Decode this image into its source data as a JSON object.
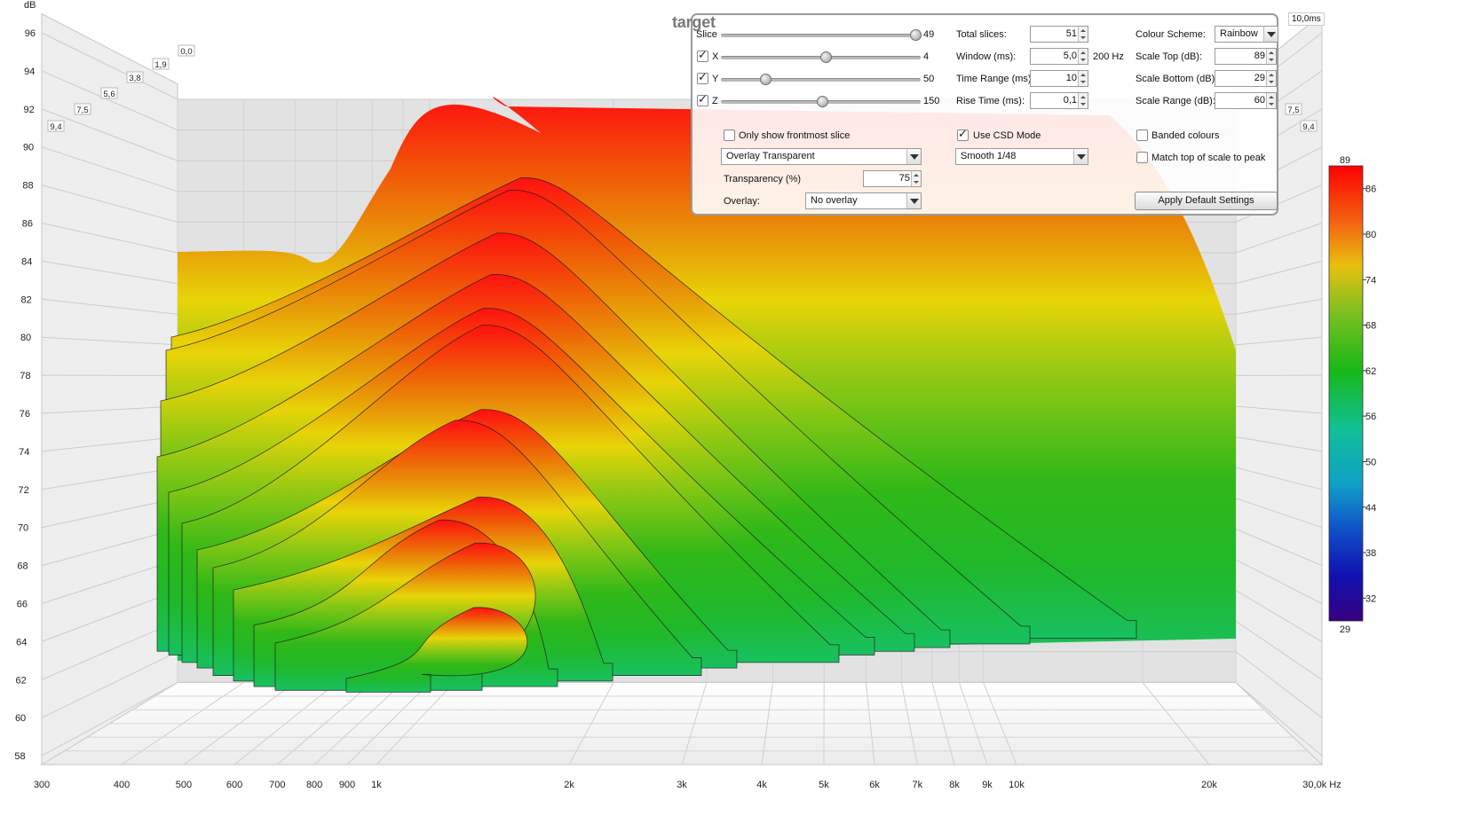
{
  "chart_data": {
    "type": "waterfall",
    "ylabel": "dB",
    "y_ticks": [
      "96",
      "94",
      "92",
      "90",
      "88",
      "86",
      "84",
      "82",
      "80",
      "78",
      "76",
      "74",
      "72",
      "70",
      "68",
      "66",
      "64",
      "62",
      "60",
      "58"
    ],
    "x_ticks": [
      "300",
      "400",
      "500",
      "600",
      "700",
      "800",
      "900",
      "1k",
      "2k",
      "3k",
      "4k",
      "5k",
      "6k",
      "7k",
      "8k",
      "9k",
      "10k",
      "20k",
      "30,0k Hz"
    ],
    "x_tick_values": [
      300,
      400,
      500,
      600,
      700,
      800,
      900,
      1000,
      2000,
      3000,
      4000,
      5000,
      6000,
      7000,
      8000,
      9000,
      10000,
      20000,
      30000
    ],
    "xlim": [
      300,
      30000
    ],
    "ylim": [
      57,
      97
    ],
    "x_scale": "log",
    "time_ticks_left": [
      "9,4",
      "7,5",
      "5,6",
      "3,8",
      "1,9",
      "0,0"
    ],
    "time_ticks_right": [
      "7,5",
      "9,4"
    ],
    "time_end_label": "10,0ms",
    "color_scale": {
      "top_label": "89",
      "bottom_label": "29",
      "ticks": [
        "86",
        "80",
        "74",
        "68",
        "62",
        "56",
        "50",
        "44",
        "38",
        "32"
      ]
    },
    "front_slice_db": [
      64.5,
      64.5,
      64.5,
      64.5,
      63.0,
      62.0,
      62.2,
      62.5,
      63.0,
      64.0,
      64.0,
      64.0,
      64.0
    ],
    "top_slice_peak_db": 93.5,
    "top_slice_peak_hz": 1250
  },
  "panel": {
    "title": "target",
    "slice_label": "Slice",
    "slice_value": "49",
    "x_label": "X",
    "x_value": "4",
    "y_label": "Y",
    "y_value": "50",
    "z_label": "Z",
    "z_value": "150",
    "total_slices_label": "Total slices:",
    "total_slices": "51",
    "window_label": "Window (ms):",
    "window": "5,0",
    "window_unit": "200 Hz",
    "time_range_label": "Time Range (ms):",
    "time_range": "10",
    "rise_time_label": "Rise Time (ms):",
    "rise_time": "0,1",
    "colour_scheme_label": "Colour Scheme:",
    "colour_scheme": "Rainbow",
    "scale_top_label": "Scale Top (dB):",
    "scale_top": "89",
    "scale_bottom_label": "Scale Bottom (dB):",
    "scale_bottom": "29",
    "scale_range_label": "Scale Range (dB):",
    "scale_range": "60",
    "only_frontmost_label": "Only show frontmost slice",
    "overlay_mode": "Overlay Transparent",
    "transparency_label": "Transparency (%)",
    "transparency": "75",
    "overlay_label": "Overlay:",
    "overlay_value": "No overlay",
    "use_csd_label": "Use CSD Mode",
    "smoothing": "Smooth 1/48",
    "banded_label": "Banded colours",
    "match_top_label": "Match top of scale to peak",
    "apply_default_label": "Apply Default Settings"
  }
}
